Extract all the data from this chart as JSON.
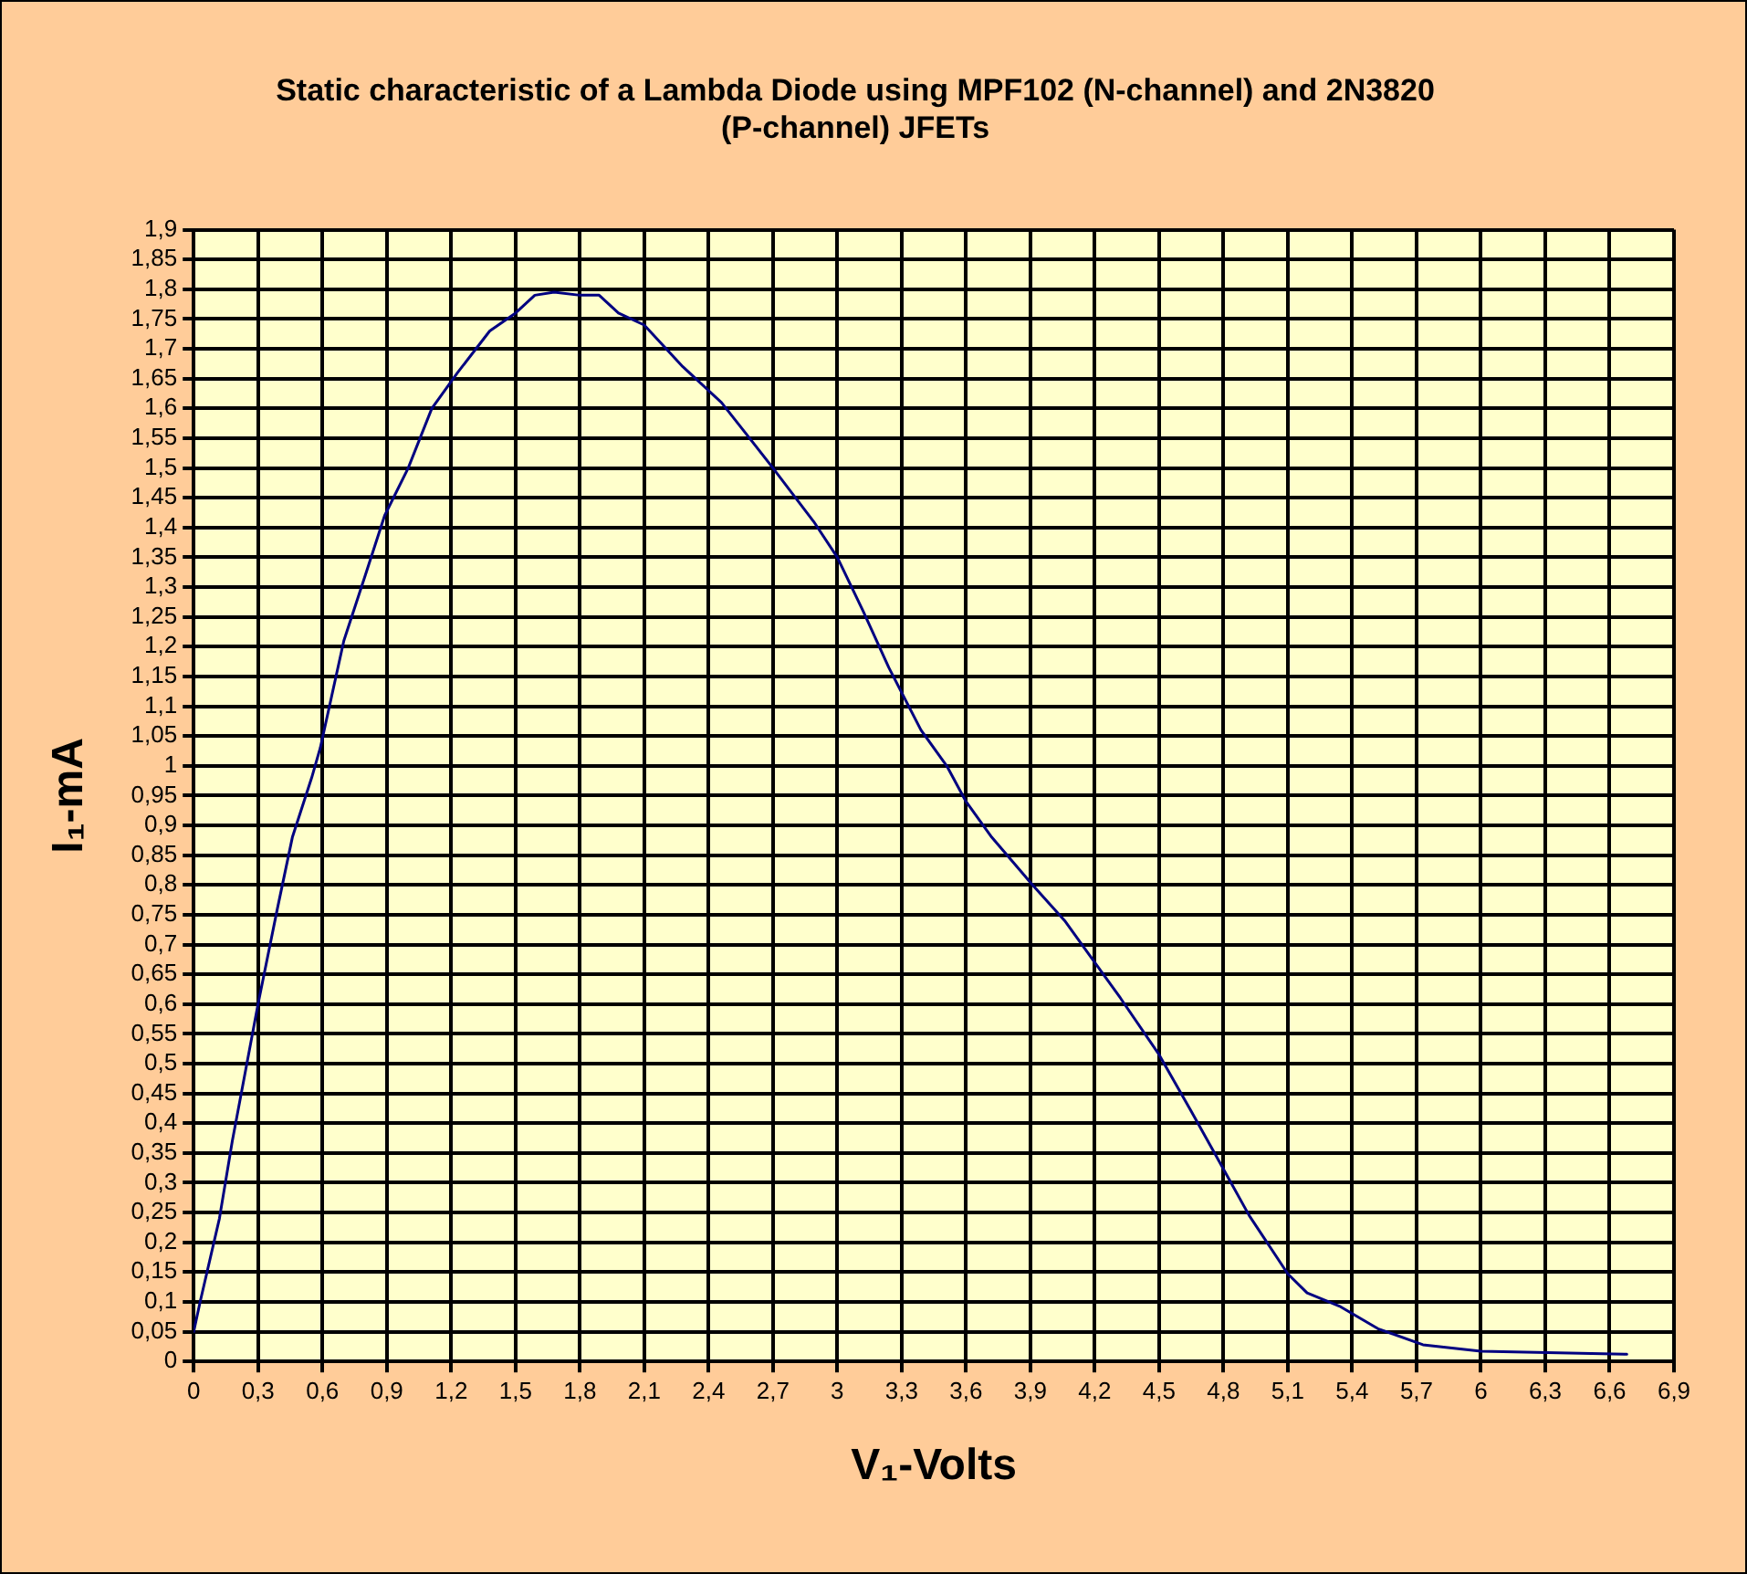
{
  "chart_data": {
    "type": "line",
    "title": "Static characteristic of a Lambda Diode using MPF102 (N-channel) and 2N3820 (P-channel) JFETs",
    "xlabel": "V₁-Volts",
    "ylabel": "I₁-mA",
    "xlim": [
      0,
      6.9
    ],
    "ylim": [
      0,
      1.9
    ],
    "xticks": [
      0,
      {
        "value": 0.3,
        "label": "0,3"
      },
      {
        "value": 0.6,
        "label": "0,6"
      },
      {
        "value": 0.9,
        "label": "0,9"
      },
      {
        "value": 1.2,
        "label": "1,2"
      },
      {
        "value": 1.5,
        "label": "1,5"
      },
      {
        "value": 1.8,
        "label": "1,8"
      },
      {
        "value": 2.1,
        "label": "2,1"
      },
      {
        "value": 2.4,
        "label": "2,4"
      },
      {
        "value": 2.7,
        "label": "2,7"
      },
      3,
      {
        "value": 3.3,
        "label": "3,3"
      },
      {
        "value": 3.6,
        "label": "3,6"
      },
      {
        "value": 3.9,
        "label": "3,9"
      },
      {
        "value": 4.2,
        "label": "4,2"
      },
      {
        "value": 4.5,
        "label": "4,5"
      },
      {
        "value": 4.8,
        "label": "4,8"
      },
      {
        "value": 5.1,
        "label": "5,1"
      },
      {
        "value": 5.4,
        "label": "5,4"
      },
      {
        "value": 5.7,
        "label": "5,7"
      },
      6,
      {
        "value": 6.3,
        "label": "6,3"
      },
      {
        "value": 6.6,
        "label": "6,6"
      },
      {
        "value": 6.9,
        "label": "6,9"
      }
    ],
    "yticks": [
      0,
      {
        "value": 0.05,
        "label": "0,05"
      },
      {
        "value": 0.1,
        "label": "0,1"
      },
      {
        "value": 0.15,
        "label": "0,15"
      },
      {
        "value": 0.2,
        "label": "0,2"
      },
      {
        "value": 0.25,
        "label": "0,25"
      },
      {
        "value": 0.3,
        "label": "0,3"
      },
      {
        "value": 0.35,
        "label": "0,35"
      },
      {
        "value": 0.4,
        "label": "0,4"
      },
      {
        "value": 0.45,
        "label": "0,45"
      },
      {
        "value": 0.5,
        "label": "0,5"
      },
      {
        "value": 0.55,
        "label": "0,55"
      },
      {
        "value": 0.6,
        "label": "0,6"
      },
      {
        "value": 0.65,
        "label": "0,65"
      },
      {
        "value": 0.7,
        "label": "0,7"
      },
      {
        "value": 0.75,
        "label": "0,75"
      },
      {
        "value": 0.8,
        "label": "0,8"
      },
      {
        "value": 0.85,
        "label": "0,85"
      },
      {
        "value": 0.9,
        "label": "0,9"
      },
      {
        "value": 0.95,
        "label": "0,95"
      },
      1,
      {
        "value": 1.05,
        "label": "1,05"
      },
      {
        "value": 1.1,
        "label": "1,1"
      },
      {
        "value": 1.15,
        "label": "1,15"
      },
      {
        "value": 1.2,
        "label": "1,2"
      },
      {
        "value": 1.25,
        "label": "1,25"
      },
      {
        "value": 1.3,
        "label": "1,3"
      },
      {
        "value": 1.35,
        "label": "1,35"
      },
      {
        "value": 1.4,
        "label": "1,4"
      },
      {
        "value": 1.45,
        "label": "1,45"
      },
      {
        "value": 1.5,
        "label": "1,5"
      },
      {
        "value": 1.55,
        "label": "1,55"
      },
      {
        "value": 1.6,
        "label": "1,6"
      },
      {
        "value": 1.65,
        "label": "1,65"
      },
      {
        "value": 1.7,
        "label": "1,7"
      },
      {
        "value": 1.75,
        "label": "1,75"
      },
      {
        "value": 1.8,
        "label": "1,8"
      },
      {
        "value": 1.85,
        "label": "1,85"
      },
      {
        "value": 1.9,
        "label": "1,9"
      }
    ],
    "grid": true,
    "legend": false,
    "marker": "none",
    "line_style": "solid",
    "series": [
      {
        "color": "#000080",
        "x": [
          0,
          0.03,
          0.12,
          0.18,
          0.3,
          0.39,
          0.46,
          0.55,
          0.59,
          0.7,
          0.8,
          0.89,
          1.0,
          1.11,
          1.23,
          1.38,
          1.5,
          1.59,
          1.68,
          1.8,
          1.89,
          1.98,
          2.1,
          2.28,
          2.46,
          2.58,
          2.7,
          2.89,
          3.0,
          3.12,
          3.24,
          3.39,
          3.51,
          3.6,
          3.72,
          3.91,
          4.06,
          4.2,
          4.32,
          4.5,
          4.65,
          4.82,
          4.92,
          5.1,
          5.19,
          5.34,
          5.52,
          5.73,
          6.0,
          6.68
        ],
        "values": [
          0.05,
          0.1,
          0.24,
          0.37,
          0.6,
          0.76,
          0.88,
          0.98,
          1.03,
          1.21,
          1.32,
          1.42,
          1.5,
          1.6,
          1.66,
          1.73,
          1.76,
          1.79,
          1.795,
          1.79,
          1.79,
          1.76,
          1.74,
          1.67,
          1.61,
          1.555,
          1.5,
          1.41,
          1.35,
          1.26,
          1.165,
          1.06,
          1.0,
          0.94,
          0.88,
          0.8,
          0.74,
          0.67,
          0.61,
          0.515,
          0.42,
          0.31,
          0.245,
          0.147,
          0.115,
          0.093,
          0.055,
          0.028,
          0.017,
          0.012
        ]
      }
    ]
  }
}
